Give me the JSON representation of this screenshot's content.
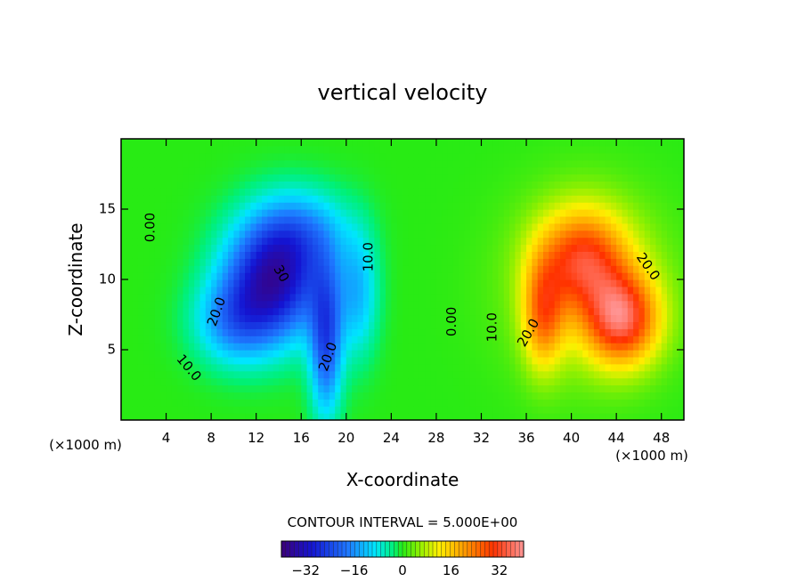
{
  "chart_data": {
    "type": "heatmap",
    "title": "vertical velocity",
    "xlabel": "X-coordinate",
    "ylabel": "Z-coordinate",
    "x_unit_left": "(×1000 m)",
    "x_unit_right": "(×1000 m)",
    "xlim": [
      0,
      50
    ],
    "ylim": [
      0,
      20
    ],
    "x_ticks": [
      4,
      8,
      12,
      16,
      20,
      24,
      28,
      32,
      36,
      40,
      44,
      48
    ],
    "y_ticks": [
      5,
      10,
      15
    ],
    "contour_interval_text": "CONTOUR INTERVAL = 5.000E+00",
    "colorbar": {
      "range": [
        -40,
        40
      ],
      "ticks": [
        -32,
        -16,
        0,
        16,
        32
      ],
      "tick_labels": [
        "−32",
        "−16",
        "0",
        "16",
        "32"
      ]
    },
    "contour_labels": [
      {
        "text": "0.00",
        "x": 2.6,
        "y": 13.7,
        "rotate": -90
      },
      {
        "text": "0.00",
        "x": 29.4,
        "y": 7.0,
        "rotate": -90
      },
      {
        "text": "10.0",
        "x": 22.0,
        "y": 11.6,
        "rotate": -90
      },
      {
        "text": "10.0",
        "x": 33.0,
        "y": 6.6,
        "rotate": -90
      },
      {
        "text": "10.0",
        "x": 6.0,
        "y": 3.7,
        "rotate": 50
      },
      {
        "text": "20.0",
        "x": 8.5,
        "y": 7.7,
        "rotate": -70
      },
      {
        "text": "20.0",
        "x": 18.4,
        "y": 4.5,
        "rotate": -70
      },
      {
        "text": "20.0",
        "x": 36.2,
        "y": 6.2,
        "rotate": -60
      },
      {
        "text": "20.0",
        "x": 46.8,
        "y": 10.9,
        "rotate": 55
      },
      {
        "text": "30",
        "x": 14.2,
        "y": 10.4,
        "rotate": 60
      }
    ],
    "features": [
      {
        "name": "downdraft",
        "x": 13.5,
        "y": 10.0,
        "sx": 4.2,
        "sy": 4.2,
        "amp": -33
      },
      {
        "name": "downdraft-tail",
        "x": 18.2,
        "y": 5.6,
        "sx": 1.4,
        "sy": 5.2,
        "amp": -22
      },
      {
        "name": "downdraft-lobe",
        "x": 10.0,
        "y": 7.0,
        "sx": 3.5,
        "sy": 3.0,
        "amp": -14
      },
      {
        "name": "downdraft-top",
        "x": 16.0,
        "y": 13.5,
        "sx": 4.0,
        "sy": 3.0,
        "amp": -12
      },
      {
        "name": "downdraft-right",
        "x": 21.0,
        "y": 9.0,
        "sx": 1.8,
        "sy": 4.5,
        "amp": -12
      },
      {
        "name": "updraft-core",
        "x": 44.5,
        "y": 7.2,
        "sx": 3.2,
        "sy": 3.2,
        "amp": 30
      },
      {
        "name": "updraft-upper",
        "x": 41.0,
        "y": 11.5,
        "sx": 3.8,
        "sy": 3.5,
        "amp": 24
      },
      {
        "name": "updraft-west",
        "x": 37.5,
        "y": 7.5,
        "sx": 1.8,
        "sy": 3.8,
        "amp": 20
      },
      {
        "name": "updraft-halo",
        "x": 41.5,
        "y": 9.5,
        "sx": 7.0,
        "sy": 6.5,
        "amp": 9
      }
    ]
  }
}
